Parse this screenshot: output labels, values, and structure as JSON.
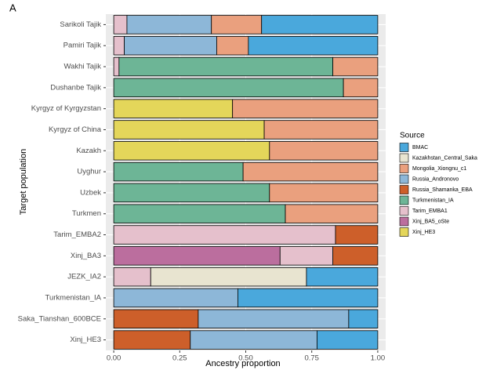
{
  "chart_data": {
    "type": "stacked-bar-horizontal",
    "panel_label": "A",
    "x_label": "Ancestry proportion",
    "y_label": "Target population",
    "legend_title": "Source",
    "categories": [
      "Sarikoli Tajik",
      "Pamiri Tajik",
      "Wakhi Tajik",
      "Dushanbe Tajik",
      "Kyrgyz of Kyrgyzstan",
      "Kyrgyz of China",
      "Kazakh",
      "Uyghur",
      "Uzbek",
      "Turkmen",
      "Tarim_EMBA2",
      "Xinj_BA3",
      "JEZK_IA2",
      "Turkmenistan_IA",
      "Saka_Tianshan_600BCE",
      "Xinj_HE3"
    ],
    "series": [
      {
        "name": "BMAC",
        "color": "#4aa8dc",
        "values": [
          0.44,
          0.49,
          null,
          null,
          null,
          null,
          null,
          null,
          null,
          null,
          null,
          null,
          0.27,
          0.53,
          0.11,
          0.23
        ]
      },
      {
        "name": "Kazakhstan_Central_Saka",
        "color": "#e8e4d0",
        "values": [
          null,
          null,
          null,
          null,
          null,
          null,
          null,
          null,
          null,
          null,
          null,
          null,
          0.59,
          null,
          null,
          null
        ]
      },
      {
        "name": "Mongolia_Xiongnu_c1",
        "color": "#eaa07e",
        "values": [
          0.19,
          0.12,
          0.17,
          0.13,
          0.55,
          0.43,
          0.41,
          0.51,
          0.41,
          0.35,
          null,
          null,
          null,
          null,
          null,
          null
        ]
      },
      {
        "name": "Russia_Andronovo",
        "color": "#8db7d8",
        "values": [
          0.32,
          0.35,
          null,
          null,
          null,
          null,
          null,
          null,
          null,
          null,
          null,
          null,
          null,
          0.47,
          0.57,
          0.48
        ]
      },
      {
        "name": "Russia_Shamanka_EBA",
        "color": "#cd5f2a",
        "values": [
          null,
          null,
          null,
          null,
          null,
          null,
          null,
          null,
          null,
          null,
          0.16,
          0.17,
          null,
          null,
          0.32,
          0.29
        ]
      },
      {
        "name": "Turkmenistan_IA",
        "color": "#6db596",
        "values": [
          null,
          null,
          0.81,
          0.87,
          null,
          null,
          null,
          0.49,
          0.59,
          0.65,
          null,
          null,
          null,
          null,
          null,
          null
        ]
      },
      {
        "name": "Tarim_EMBA1",
        "color": "#e5c0cc",
        "values": [
          0.05,
          0.04,
          0.02,
          null,
          null,
          null,
          null,
          null,
          null,
          null,
          0.84,
          0.2,
          0.14,
          null,
          null,
          null
        ]
      },
      {
        "name": "Xinj_BA5_oSte",
        "color": "#bb6e9e",
        "values": [
          null,
          null,
          null,
          null,
          null,
          null,
          null,
          null,
          null,
          null,
          null,
          0.63,
          null,
          null,
          null,
          null
        ]
      },
      {
        "name": "Xinj_HE3",
        "color": "#e4d65a",
        "values": [
          null,
          null,
          null,
          null,
          0.45,
          0.57,
          0.59,
          null,
          null,
          null,
          null,
          null,
          null,
          null,
          null,
          null
        ]
      }
    ],
    "xlim": [
      -0.03,
      1.03
    ],
    "xticks": [
      {
        "value": 0,
        "label": "0.00"
      },
      {
        "value": 0.25,
        "label": "0.25"
      },
      {
        "value": 0.5,
        "label": "0.50"
      },
      {
        "value": 0.75,
        "label": "0.75"
      },
      {
        "value": 1,
        "label": "1.00"
      }
    ],
    "grid": true
  }
}
